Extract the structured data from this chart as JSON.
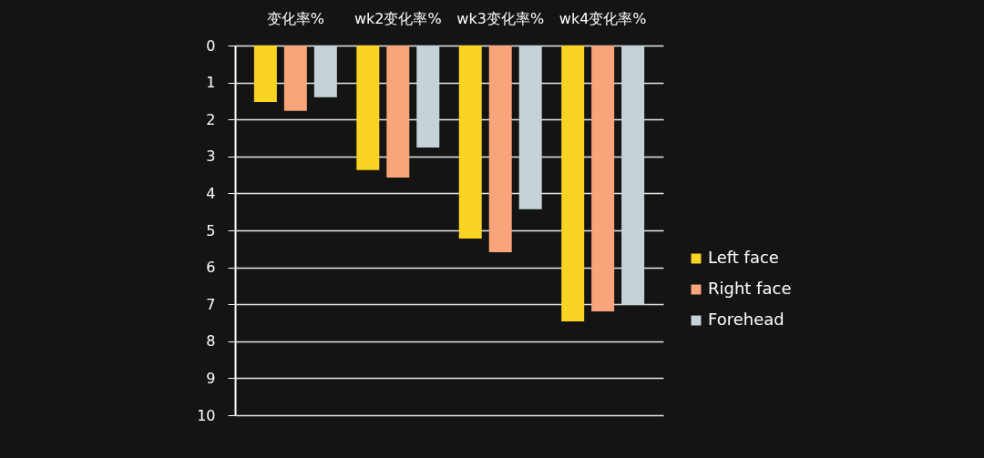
{
  "chart_data": {
    "type": "bar",
    "categories": [
      "变化率%",
      "wk2变化率%",
      "wk3变化率%",
      "wk4变化率%"
    ],
    "series": [
      {
        "name": "Left face",
        "color": "#f9d423",
        "values": [
          1.53,
          3.37,
          5.22,
          7.46
        ]
      },
      {
        "name": "Right face",
        "color": "#f9a47a",
        "values": [
          1.77,
          3.57,
          5.59,
          7.19
        ]
      },
      {
        "name": "Forehead",
        "color": "#c5d3d8",
        "values": [
          1.4,
          2.76,
          4.43,
          7.02
        ]
      }
    ],
    "ylim": [
      10,
      0
    ],
    "yticks": [
      0,
      1,
      2,
      3,
      4,
      5,
      6,
      7,
      8,
      9,
      10
    ],
    "grid": "y",
    "legend": "right"
  }
}
